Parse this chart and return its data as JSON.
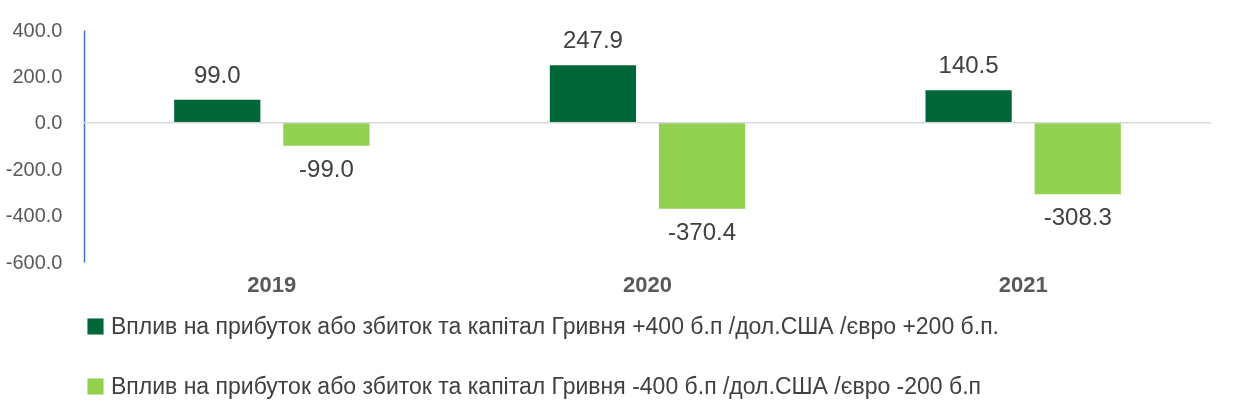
{
  "chart_data": {
    "type": "bar",
    "categories": [
      "2019",
      "2020",
      "2021"
    ],
    "series": [
      {
        "name": "Вплив на прибуток або збиток та капітал   Гривня +400 б.п /дол.США /євро +200 б.п.",
        "color": "#006838",
        "values": [
          99.0,
          247.9,
          140.5
        ],
        "value_labels": [
          "99.0",
          "247.9",
          "140.5"
        ]
      },
      {
        "name": "Вплив на прибуток або збиток та капітал    Гривня -400 б.п /дол.США /євро -200 б.п",
        "color": "#92d050",
        "values": [
          -99.0,
          -370.4,
          -308.3
        ],
        "value_labels": [
          "-99.0",
          "-370.4",
          "-308.3"
        ]
      }
    ],
    "ylim": [
      -600,
      400
    ],
    "yticks": [
      {
        "value": -600,
        "label": "-600.0"
      },
      {
        "value": -400,
        "label": "-400.0"
      },
      {
        "value": -200,
        "label": "-200.0"
      },
      {
        "value": 0,
        "label": "0.0"
      },
      {
        "value": 200,
        "label": "200.0"
      },
      {
        "value": 400,
        "label": "400.0"
      }
    ],
    "ref_lines": [
      {
        "axis": "y",
        "value": 0,
        "color": "#d9d9d9"
      }
    ],
    "grid": false,
    "legend": "bottom"
  }
}
